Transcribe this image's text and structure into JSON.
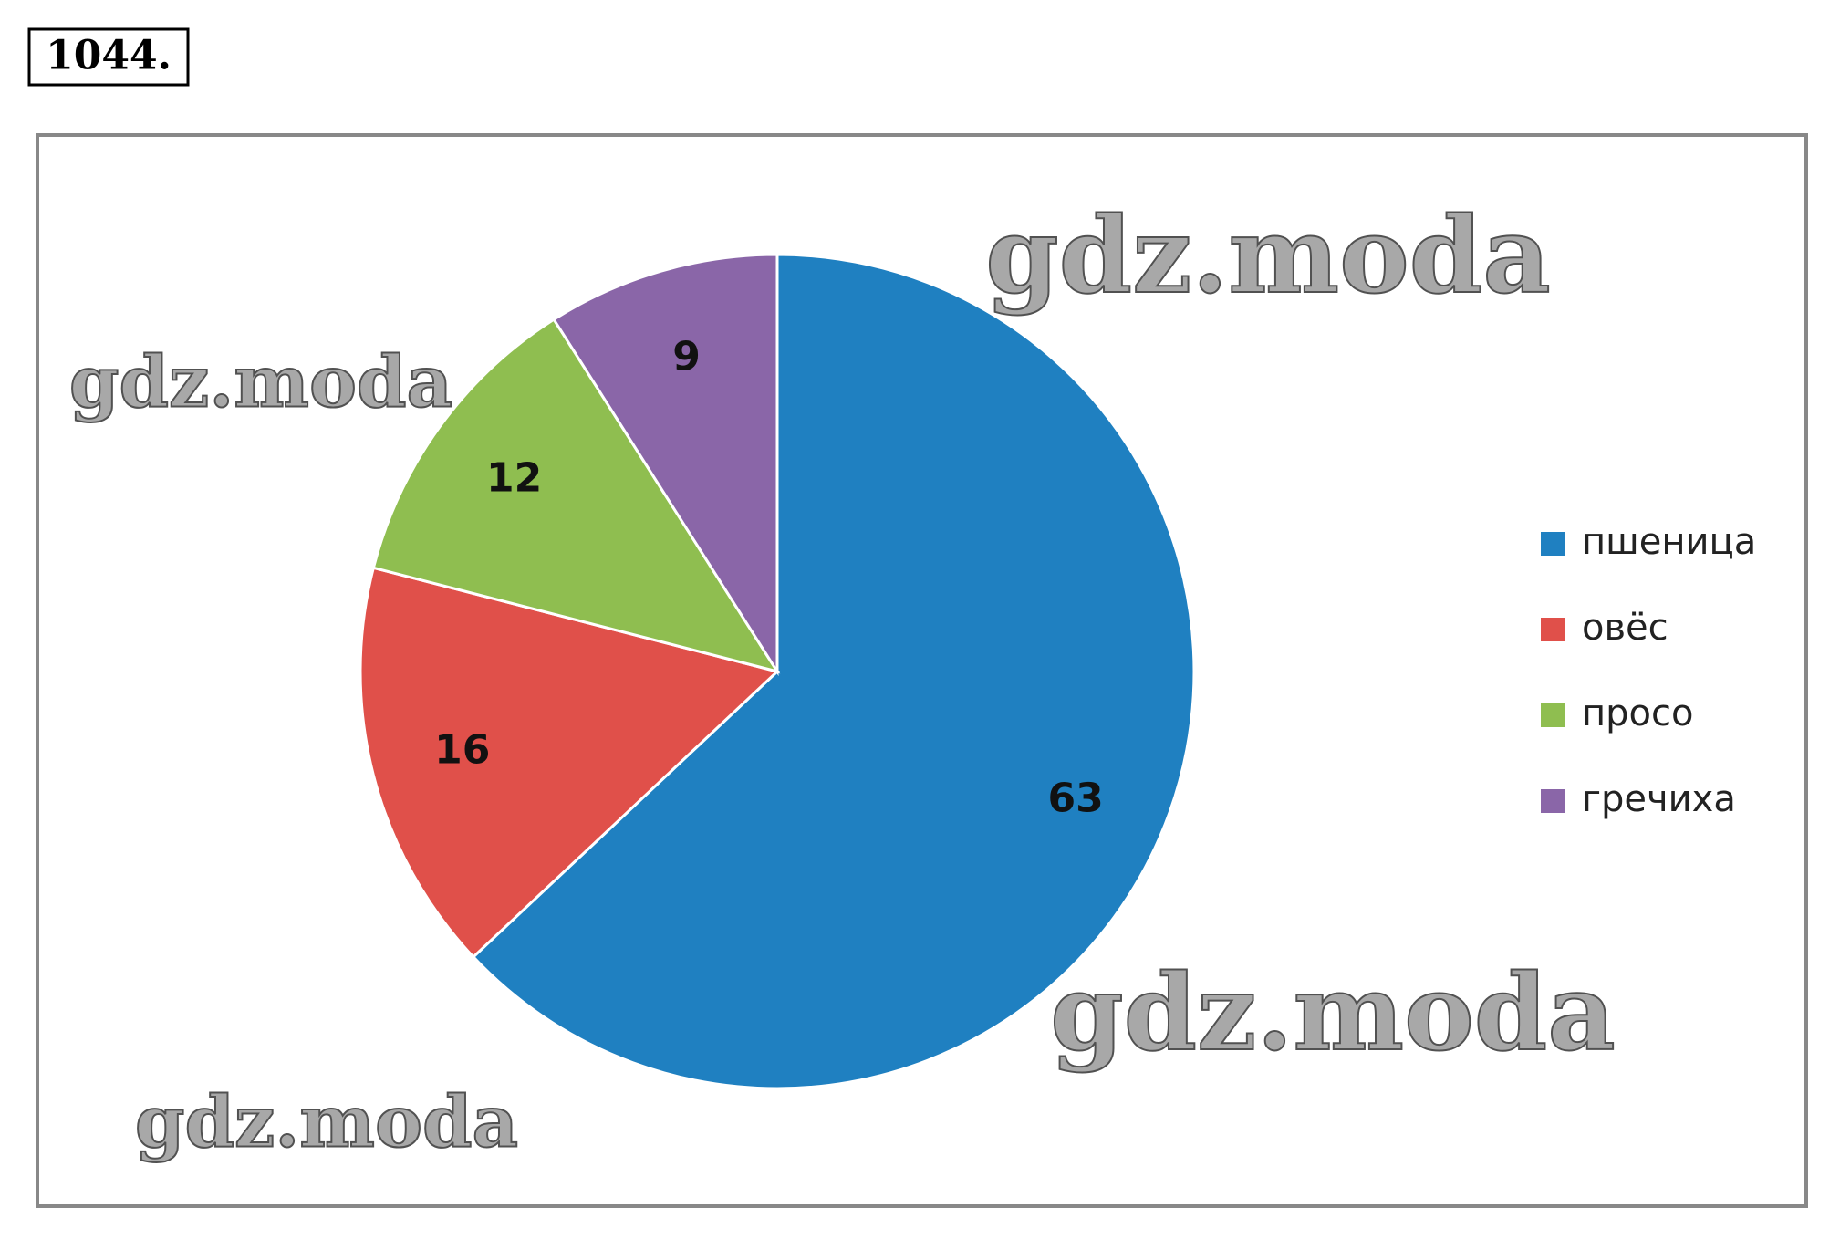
{
  "header": {
    "number": "1044."
  },
  "watermarks": [
    "gdz.moda",
    "gdz.moda",
    "gdz.moda",
    "gdz.moda"
  ],
  "chart_data": {
    "type": "pie",
    "categories": [
      "пшеница",
      "овёс",
      "просо",
      "гречиха"
    ],
    "values": [
      63,
      16,
      12,
      9
    ],
    "colors": [
      "#1f80c1",
      "#e0504a",
      "#8fbe50",
      "#8a66a8"
    ],
    "legend": "right"
  }
}
